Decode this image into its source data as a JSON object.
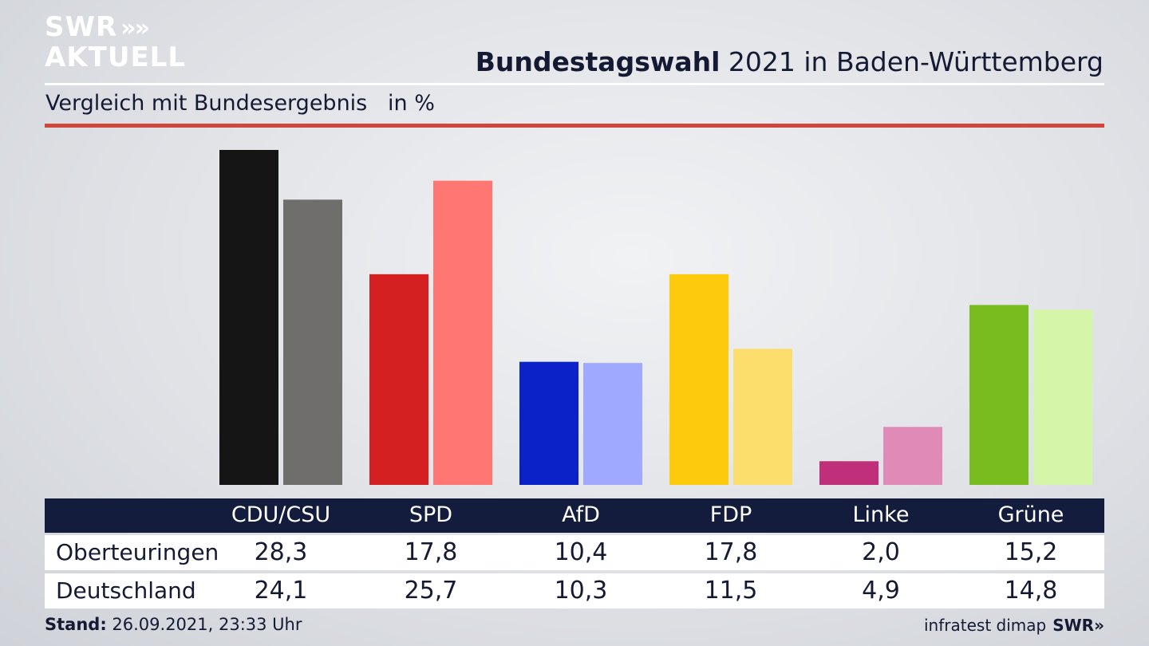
{
  "brand": {
    "line1": "SWR",
    "line2": "AKTUELL",
    "chevrons": "»"
  },
  "header": {
    "title_bold": "Bundestagswahl",
    "title_rest": " 2021 in Baden-Württemberg",
    "subtitle": "Vergleich mit Bundesergebnis   in %"
  },
  "chart_data": {
    "type": "bar",
    "categories": [
      "CDU/CSU",
      "SPD",
      "AfD",
      "FDP",
      "Linke",
      "Grüne"
    ],
    "series": [
      {
        "name": "Oberteuringen",
        "values": [
          28.3,
          17.8,
          10.4,
          17.8,
          2.0,
          15.2
        ]
      },
      {
        "name": "Deutschland",
        "values": [
          24.1,
          25.7,
          10.3,
          11.5,
          4.9,
          14.8
        ]
      }
    ],
    "value_labels": [
      [
        "28,3",
        "17,8",
        "10,4",
        "17,8",
        "2,0",
        "15,2"
      ],
      [
        "24,1",
        "25,7",
        "10,3",
        "11,5",
        "4,9",
        "14,8"
      ]
    ],
    "colors": [
      [
        "#151515",
        "#d42020",
        "#0a22c8",
        "#fecb0c",
        "#c0307a",
        "#78bc1e"
      ],
      [
        "#6f6e6c",
        "#ff7672",
        "#9ea9ff",
        "#fcde6c",
        "#e08ab8",
        "#d5f5a8"
      ]
    ],
    "ylim": [
      0,
      28.3
    ],
    "grid": false,
    "legend": "table-below"
  },
  "footer": {
    "stand_label": "Stand:",
    "stand_value": " 26.09.2021, 23:33 Uhr",
    "source": "infratest dimap",
    "source_brand": "SWR»"
  }
}
